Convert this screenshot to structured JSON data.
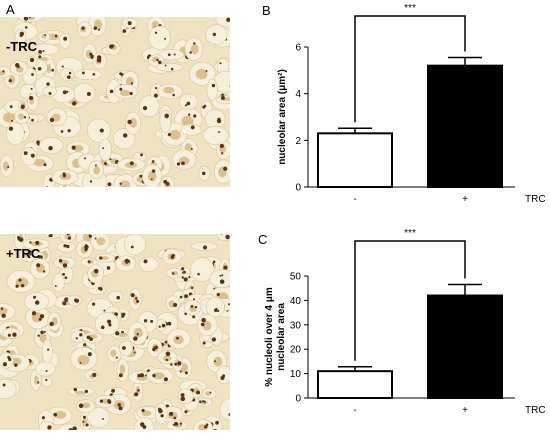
{
  "panels": {
    "a_letter": "A",
    "b_letter": "B",
    "c_letter": "C"
  },
  "micrographs": {
    "top_label": "-TRC",
    "bottom_label": "+TRC",
    "colors": {
      "background": "#efe3c2",
      "cell": "#f6efdc",
      "nucleus": "#c69a52",
      "nucleolus": "#5a3214"
    }
  },
  "chart_data": [
    {
      "type": "bar",
      "panel": "B",
      "categories": [
        "-",
        "+"
      ],
      "values": [
        2.3,
        5.2
      ],
      "errors": [
        0.22,
        0.35
      ],
      "bar_colors": [
        "#ffffff",
        "#000000"
      ],
      "ylabel": "nucleolar area (μm²)",
      "xlabel": "TRC",
      "ylim": [
        0,
        6
      ],
      "yticks": [
        0,
        2,
        4,
        6
      ],
      "significance": "***"
    },
    {
      "type": "bar",
      "panel": "C",
      "categories": [
        "-",
        "+"
      ],
      "values": [
        11,
        42
      ],
      "errors": [
        1.8,
        4.5
      ],
      "bar_colors": [
        "#ffffff",
        "#000000"
      ],
      "ylabel": "% nucleoli over 4 μm nucleolar area",
      "xlabel": "TRC",
      "ylim": [
        0,
        50
      ],
      "yticks": [
        0,
        10,
        20,
        30,
        40,
        50
      ],
      "significance": "***"
    }
  ]
}
